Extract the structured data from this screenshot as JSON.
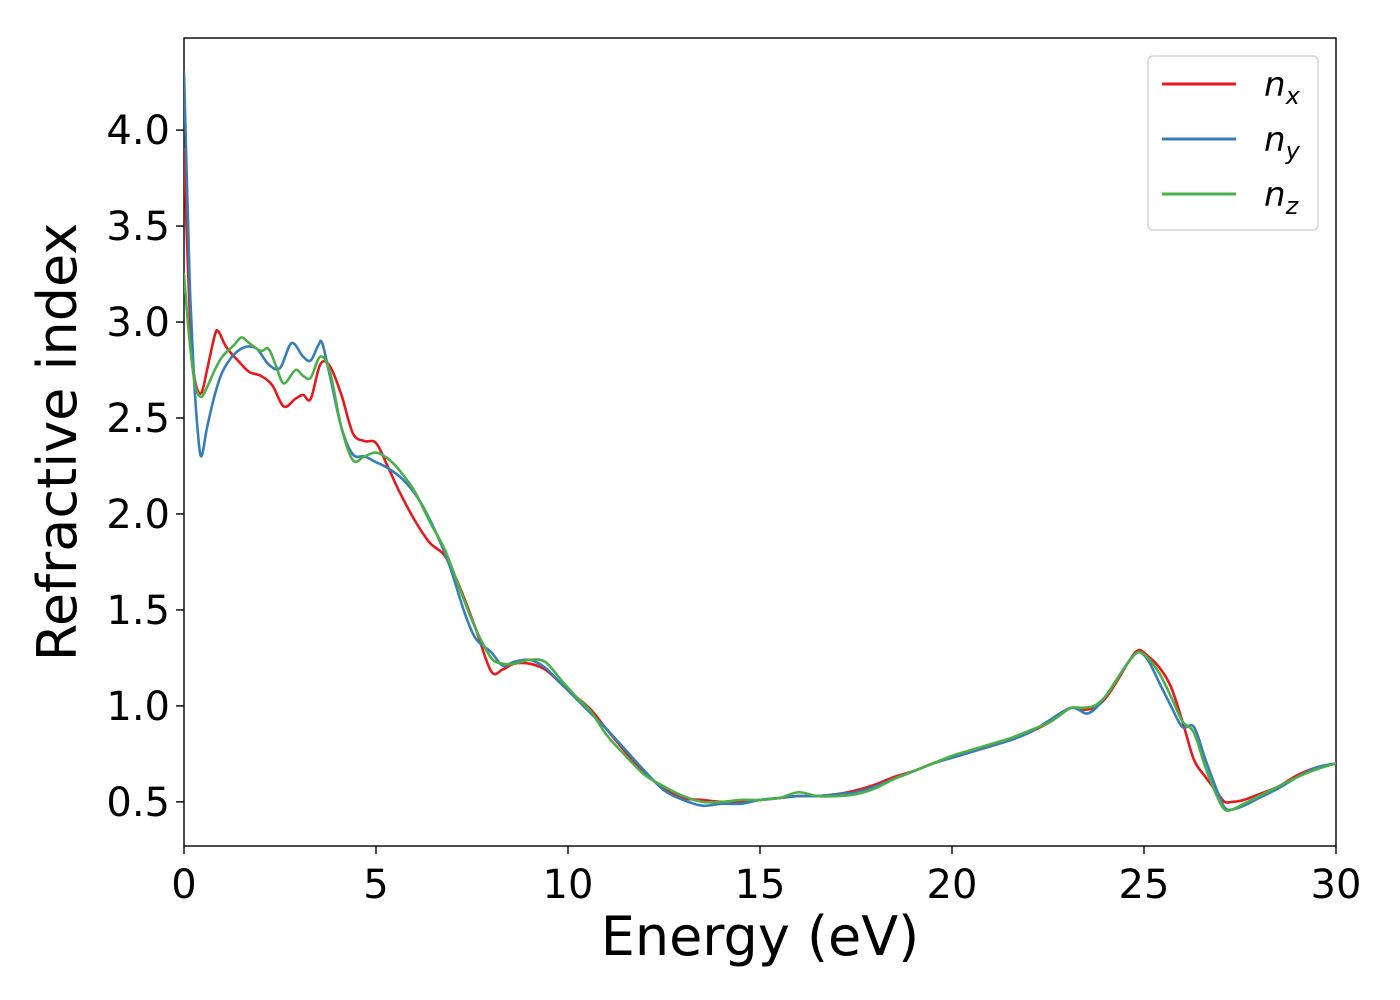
{
  "chart_data": {
    "type": "line",
    "title": "",
    "xlabel": "Energy (eV)",
    "ylabel": "Refractive index",
    "xlim": [
      0,
      30
    ],
    "ylim": [
      0.27,
      4.48
    ],
    "xticks": [
      0,
      5,
      10,
      15,
      20,
      25,
      30
    ],
    "yticks": [
      0.5,
      1.0,
      1.5,
      2.0,
      2.5,
      3.0,
      3.5,
      4.0
    ],
    "xtick_labels": [
      "0",
      "5",
      "10",
      "15",
      "20",
      "25",
      "30"
    ],
    "ytick_labels": [
      "0.5",
      "1.0",
      "1.5",
      "2.0",
      "2.5",
      "3.0",
      "3.5",
      "4.0"
    ],
    "grid": false,
    "legend": "top-right",
    "series": [
      {
        "name": "n",
        "subscript": "x",
        "color": "#e41a1c",
        "x": [
          0,
          0.1,
          0.2,
          0.3,
          0.45,
          0.6,
          0.8,
          0.9,
          1.1,
          1.4,
          1.7,
          2.0,
          2.3,
          2.6,
          2.9,
          3.1,
          3.3,
          3.55,
          3.8,
          4.1,
          4.4,
          4.7,
          5.0,
          5.3,
          5.6,
          6.0,
          6.4,
          6.8,
          7.2,
          7.6,
          8.0,
          8.3,
          8.6,
          9.0,
          9.4,
          9.8,
          10.2,
          10.6,
          11.0,
          11.5,
          12.0,
          12.5,
          13.0,
          13.5,
          14.0,
          14.5,
          15.0,
          15.5,
          16.0,
          16.5,
          17.0,
          17.5,
          18.0,
          18.5,
          19.0,
          19.5,
          20.0,
          20.5,
          21.0,
          21.5,
          22.0,
          22.5,
          22.8,
          23.1,
          23.4,
          23.7,
          24.0,
          24.3,
          24.6,
          24.85,
          25.1,
          25.4,
          25.7,
          26.0,
          26.3,
          26.6,
          26.9,
          27.1,
          27.3,
          27.6,
          28.0,
          28.5,
          29.0,
          29.5,
          30.0
        ],
        "y": [
          3.9,
          3.3,
          2.85,
          2.68,
          2.63,
          2.75,
          2.93,
          2.95,
          2.87,
          2.8,
          2.74,
          2.72,
          2.67,
          2.56,
          2.6,
          2.62,
          2.6,
          2.78,
          2.77,
          2.62,
          2.42,
          2.38,
          2.37,
          2.25,
          2.12,
          1.97,
          1.85,
          1.78,
          1.61,
          1.4,
          1.18,
          1.19,
          1.22,
          1.22,
          1.19,
          1.12,
          1.05,
          0.98,
          0.88,
          0.76,
          0.65,
          0.57,
          0.52,
          0.51,
          0.5,
          0.5,
          0.51,
          0.52,
          0.53,
          0.53,
          0.54,
          0.56,
          0.59,
          0.63,
          0.66,
          0.7,
          0.73,
          0.76,
          0.79,
          0.82,
          0.86,
          0.91,
          0.95,
          0.99,
          0.98,
          0.99,
          1.04,
          1.13,
          1.23,
          1.29,
          1.26,
          1.2,
          1.1,
          0.92,
          0.72,
          0.63,
          0.55,
          0.5,
          0.5,
          0.51,
          0.54,
          0.58,
          0.64,
          0.68,
          0.7
        ]
      },
      {
        "name": "n",
        "subscript": "y",
        "color": "#377eb8",
        "x": [
          0,
          0.08,
          0.15,
          0.25,
          0.35,
          0.45,
          0.6,
          0.8,
          1.0,
          1.3,
          1.6,
          1.9,
          2.2,
          2.5,
          2.8,
          3.1,
          3.3,
          3.5,
          3.6,
          3.8,
          4.1,
          4.4,
          4.7,
          5.0,
          5.3,
          5.7,
          6.1,
          6.5,
          6.9,
          7.3,
          7.6,
          8.0,
          8.3,
          8.6,
          9.0,
          9.4,
          9.8,
          10.2,
          10.6,
          11.0,
          11.5,
          12.0,
          12.5,
          13.0,
          13.5,
          14.0,
          14.5,
          15.0,
          15.5,
          16.0,
          16.5,
          17.0,
          17.5,
          18.0,
          18.5,
          19.0,
          19.5,
          20.0,
          20.5,
          21.0,
          21.5,
          22.0,
          22.5,
          22.8,
          23.1,
          23.3,
          23.5,
          23.7,
          24.0,
          24.3,
          24.6,
          24.85,
          25.1,
          25.4,
          25.7,
          26.0,
          26.3,
          26.6,
          26.9,
          27.1,
          27.3,
          27.6,
          28.0,
          28.5,
          29.0,
          29.5,
          30.0
        ],
        "y": [
          4.3,
          3.7,
          3.2,
          2.75,
          2.45,
          2.3,
          2.45,
          2.62,
          2.74,
          2.83,
          2.87,
          2.86,
          2.78,
          2.76,
          2.89,
          2.82,
          2.8,
          2.88,
          2.89,
          2.72,
          2.45,
          2.31,
          2.3,
          2.27,
          2.24,
          2.18,
          2.08,
          1.93,
          1.74,
          1.49,
          1.35,
          1.28,
          1.21,
          1.23,
          1.24,
          1.2,
          1.12,
          1.04,
          0.96,
          0.88,
          0.77,
          0.66,
          0.56,
          0.51,
          0.48,
          0.49,
          0.49,
          0.51,
          0.52,
          0.53,
          0.53,
          0.54,
          0.55,
          0.58,
          0.62,
          0.66,
          0.7,
          0.73,
          0.76,
          0.79,
          0.82,
          0.86,
          0.92,
          0.96,
          0.99,
          0.98,
          0.96,
          0.98,
          1.05,
          1.14,
          1.23,
          1.28,
          1.24,
          1.12,
          1.0,
          0.89,
          0.89,
          0.72,
          0.56,
          0.47,
          0.46,
          0.48,
          0.52,
          0.57,
          0.63,
          0.68,
          0.7
        ]
      },
      {
        "name": "n",
        "subscript": "z",
        "color": "#4daf4a",
        "x": [
          0,
          0.1,
          0.2,
          0.3,
          0.45,
          0.6,
          0.8,
          1.0,
          1.3,
          1.5,
          1.7,
          2.0,
          2.2,
          2.4,
          2.6,
          2.9,
          3.1,
          3.3,
          3.55,
          3.8,
          4.1,
          4.4,
          4.7,
          5.0,
          5.3,
          5.6,
          6.0,
          6.4,
          6.8,
          7.2,
          7.6,
          8.0,
          8.3,
          8.6,
          9.0,
          9.4,
          9.8,
          10.2,
          10.6,
          11.0,
          11.5,
          12.0,
          12.5,
          13.0,
          13.5,
          14.0,
          14.5,
          15.0,
          15.5,
          16.0,
          16.5,
          17.0,
          17.5,
          18.0,
          18.5,
          19.0,
          19.5,
          20.0,
          20.5,
          21.0,
          21.5,
          22.0,
          22.5,
          22.8,
          23.1,
          23.4,
          23.7,
          24.0,
          24.3,
          24.6,
          24.85,
          25.1,
          25.4,
          25.7,
          26.0,
          26.3,
          26.6,
          26.9,
          27.1,
          27.3,
          27.6,
          28.0,
          28.5,
          29.0,
          29.5,
          30.0
        ],
        "y": [
          3.25,
          3.0,
          2.8,
          2.66,
          2.61,
          2.66,
          2.75,
          2.82,
          2.88,
          2.92,
          2.89,
          2.85,
          2.86,
          2.77,
          2.68,
          2.75,
          2.72,
          2.71,
          2.82,
          2.74,
          2.45,
          2.28,
          2.3,
          2.32,
          2.29,
          2.23,
          2.12,
          1.96,
          1.81,
          1.6,
          1.4,
          1.25,
          1.22,
          1.22,
          1.24,
          1.23,
          1.14,
          1.05,
          0.97,
          0.85,
          0.74,
          0.64,
          0.58,
          0.53,
          0.5,
          0.5,
          0.51,
          0.51,
          0.52,
          0.55,
          0.53,
          0.53,
          0.54,
          0.57,
          0.62,
          0.66,
          0.7,
          0.74,
          0.77,
          0.8,
          0.83,
          0.87,
          0.91,
          0.95,
          0.99,
          0.99,
          1.0,
          1.05,
          1.14,
          1.23,
          1.28,
          1.25,
          1.17,
          1.05,
          0.92,
          0.86,
          0.68,
          0.53,
          0.46,
          0.46,
          0.49,
          0.53,
          0.58,
          0.63,
          0.67,
          0.7
        ]
      }
    ]
  }
}
